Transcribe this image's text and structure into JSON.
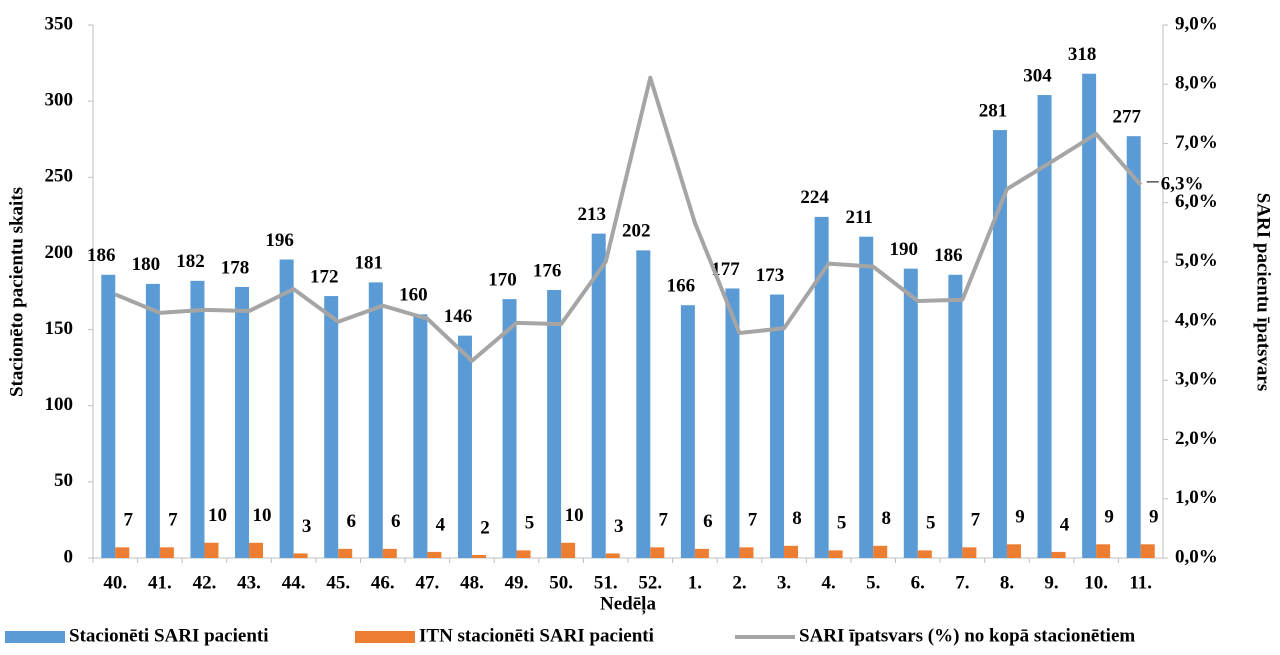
{
  "chart_data": {
    "type": "bar",
    "x_label": "Nedēļa",
    "y_label": "Stacionēto pacientu skaits",
    "y2_label": "SARI pacientu īpatsvars",
    "categories": [
      "40.",
      "41.",
      "42.",
      "43.",
      "44.",
      "45.",
      "46.",
      "47.",
      "48.",
      "49.",
      "50.",
      "51.",
      "52.",
      "1.",
      "2.",
      "3.",
      "4.",
      "5.",
      "6.",
      "7.",
      "8.",
      "9.",
      "10.",
      "11."
    ],
    "series": [
      {
        "name": "Stacionēti SARI pacienti",
        "type": "bar",
        "color": "#5b9bd5",
        "values": [
          186,
          180,
          182,
          178,
          196,
          172,
          181,
          160,
          146,
          170,
          176,
          213,
          202,
          166,
          177,
          173,
          224,
          211,
          190,
          186,
          281,
          304,
          318,
          277
        ]
      },
      {
        "name": "ITN stacionēti SARI pacienti",
        "type": "bar",
        "color": "#ed7d31",
        "values": [
          7,
          7,
          10,
          10,
          3,
          6,
          6,
          4,
          2,
          5,
          10,
          3,
          7,
          6,
          7,
          8,
          5,
          8,
          5,
          7,
          9,
          4,
          9,
          9
        ]
      },
      {
        "name": "SARI īpatsvars (%) no kopā stacionētiem",
        "type": "line",
        "color": "#a5a5a5",
        "axis": "y2",
        "values": [
          4.45,
          4.14,
          4.19,
          4.17,
          4.54,
          3.99,
          4.26,
          4.04,
          3.33,
          3.97,
          3.95,
          5.0,
          8.11,
          5.66,
          3.8,
          3.88,
          4.97,
          4.92,
          4.34,
          4.36,
          6.23,
          6.69,
          7.16,
          6.3
        ],
        "value_labels": [
          null,
          null,
          null,
          null,
          null,
          null,
          null,
          null,
          null,
          null,
          null,
          null,
          null,
          null,
          null,
          null,
          null,
          null,
          null,
          null,
          null,
          null,
          null,
          "6,3%"
        ]
      }
    ],
    "ylim": [
      0,
      350
    ],
    "yticks": [
      0,
      50,
      100,
      150,
      200,
      250,
      300,
      350
    ],
    "y2lim": [
      0,
      9
    ],
    "y2ticks": [
      {
        "value": 0,
        "label": "0,0%"
      },
      {
        "value": 1,
        "label": "1,0%"
      },
      {
        "value": 2,
        "label": "2,0%"
      },
      {
        "value": 3,
        "label": "3,0%"
      },
      {
        "value": 4,
        "label": "4,0%"
      },
      {
        "value": 5,
        "label": "5,0%"
      },
      {
        "value": 6,
        "label": "6,0%"
      },
      {
        "value": 7,
        "label": "7,0%"
      },
      {
        "value": 8,
        "label": "8,0%"
      },
      {
        "value": 9,
        "label": "9,0%"
      }
    ],
    "grid": false,
    "legend": "bottom"
  }
}
